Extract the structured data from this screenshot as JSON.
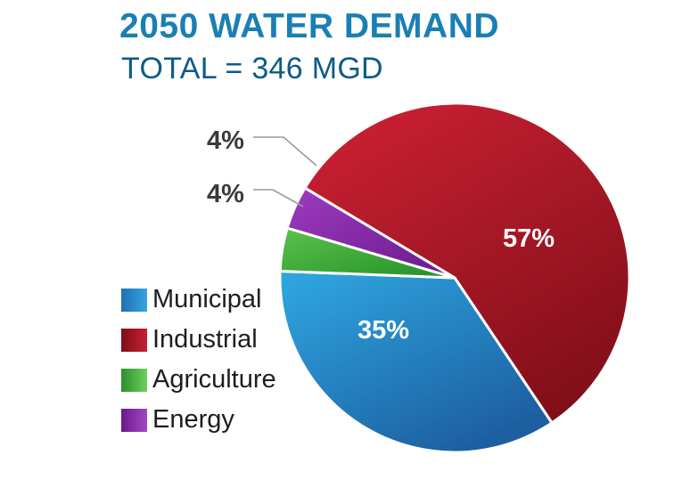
{
  "title": "2050 WATER DEMAND",
  "subtitle": "TOTAL = 346 MGD",
  "chart_data": {
    "type": "pie",
    "title": "2050 WATER DEMAND",
    "subtitle": "TOTAL = 346 MGD",
    "slices": [
      {
        "label": "Municipal",
        "value": 35,
        "display": "35%",
        "color": "#2b86c7"
      },
      {
        "label": "Industrial",
        "value": 57,
        "display": "57%",
        "color": "#b51b2a"
      },
      {
        "label": "Agriculture",
        "value": 4,
        "display": "4%",
        "color": "#3eaa3a"
      },
      {
        "label": "Energy",
        "value": 4,
        "display": "4%",
        "color": "#8a2ba6"
      }
    ],
    "legend_position": "bottom-left"
  }
}
